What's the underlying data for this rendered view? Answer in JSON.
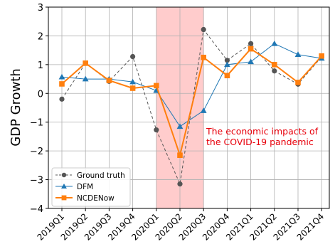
{
  "chart_data": {
    "type": "line",
    "title": "",
    "xlabel": "",
    "ylabel": "GDP Growth",
    "ylim": [
      -4,
      3
    ],
    "yticks": [
      -4,
      -3,
      -2,
      -1,
      0,
      1,
      2,
      3
    ],
    "ytick_labels": [
      "−4",
      "−3",
      "−2",
      "−1",
      "0",
      "1",
      "2",
      "3"
    ],
    "grid": true,
    "legend_position": "lower-left",
    "categories": [
      "2019Q1",
      "2019Q2",
      "2019Q3",
      "2019Q4",
      "2020Q1",
      "2020Q2",
      "2020Q3",
      "2020Q4",
      "2021Q1",
      "2021Q2",
      "2021Q3",
      "2021Q4"
    ],
    "series": [
      {
        "name": "Ground truth",
        "color": "#555555",
        "marker": "circle",
        "line_style": "dashed",
        "values": [
          -0.2,
          1.05,
          0.42,
          1.28,
          -1.27,
          -3.15,
          2.22,
          1.15,
          1.73,
          0.78,
          0.32,
          1.27
        ]
      },
      {
        "name": "DFM",
        "color": "#1f77b4",
        "marker": "triangle",
        "line_style": "solid",
        "values": [
          0.57,
          0.5,
          0.5,
          0.4,
          0.1,
          -1.15,
          -0.6,
          1.0,
          1.1,
          1.73,
          1.35,
          1.22
        ]
      },
      {
        "name": "NCDENow",
        "color": "#ff7f0e",
        "marker": "square",
        "line_style": "solid",
        "values": [
          0.33,
          1.05,
          0.45,
          0.18,
          0.27,
          -2.15,
          1.25,
          0.62,
          1.55,
          1.0,
          0.38,
          1.3
        ]
      }
    ],
    "highlight": {
      "from": "2020Q1",
      "to": "2020Q3",
      "color": "#ffcccc"
    },
    "annotation": {
      "text_lines": [
        "The economic impacts of",
        "the COVID-19 pandemic"
      ],
      "color": "#e8000b"
    }
  }
}
